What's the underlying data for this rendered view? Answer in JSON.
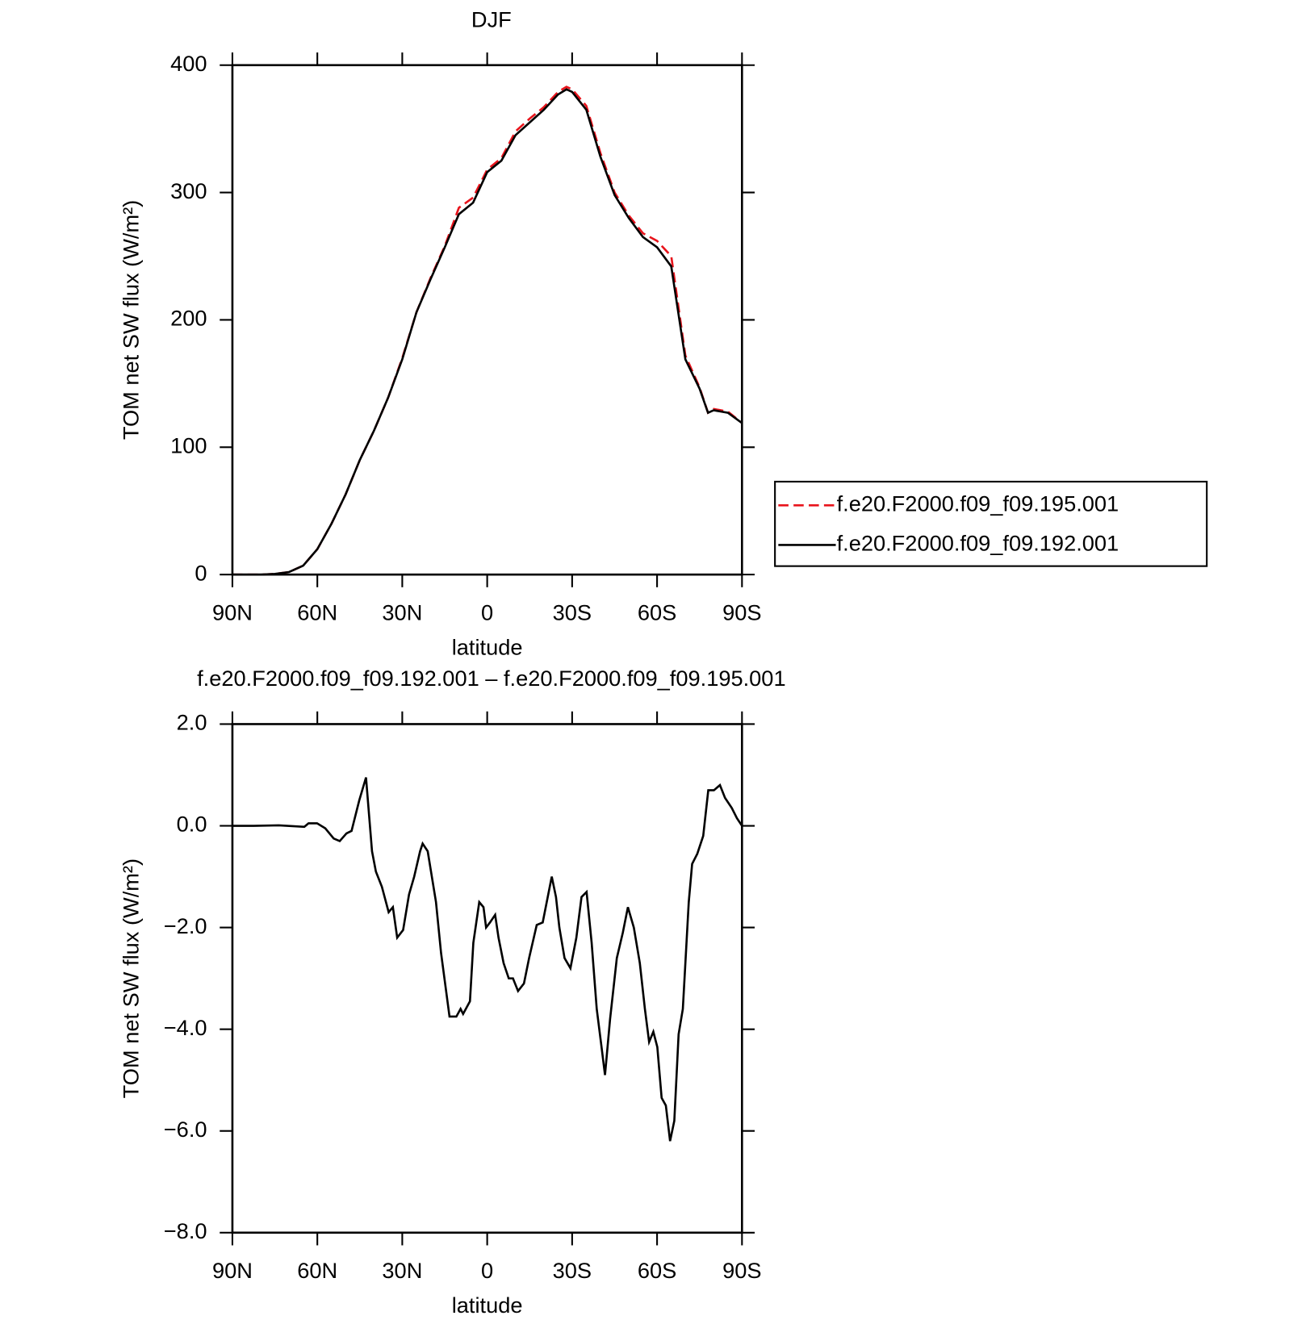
{
  "chart_data": [
    {
      "type": "line",
      "title": "DJF",
      "xlabel": "latitude",
      "ylabel": "TOM net SW flux (W/m²)",
      "x": [
        90,
        85,
        80,
        75,
        70,
        65,
        60,
        55,
        50,
        45,
        40,
        35,
        30,
        25,
        20,
        15,
        10,
        5,
        0,
        -5,
        -10,
        -15,
        -20,
        -25,
        -28,
        -30,
        -35,
        -40,
        -45,
        -50,
        -55,
        -60,
        -65,
        -70,
        -75,
        -78,
        -80,
        -85,
        -90
      ],
      "series": [
        {
          "name": "f.e20.F2000.f09_f09.195.001",
          "color": "#e8141c",
          "linestyle": "dashed",
          "values": [
            0,
            0,
            0,
            0.5,
            2,
            7,
            20,
            40,
            63,
            90,
            113,
            139,
            170,
            206,
            233,
            258,
            288,
            296,
            318,
            327,
            348,
            358,
            367,
            379,
            383,
            381,
            368,
            331,
            300,
            282,
            268,
            262,
            250,
            172,
            147,
            127,
            130,
            128,
            119
          ]
        },
        {
          "name": "f.e20.F2000.f09_f09.192.001",
          "color": "#000000",
          "linestyle": "solid",
          "values": [
            0,
            0,
            0,
            0.5,
            2,
            7,
            20,
            40,
            63,
            90,
            113,
            139,
            169,
            206,
            232,
            257,
            283,
            292,
            316,
            325,
            345,
            355,
            365,
            377,
            381,
            379,
            365,
            328,
            298,
            280,
            265,
            257,
            242,
            169,
            146,
            127,
            129,
            127,
            119
          ]
        }
      ],
      "xlim": [
        90,
        -90
      ],
      "xticks": [
        {
          "value": 90,
          "label": "90N"
        },
        {
          "value": 60,
          "label": "60N"
        },
        {
          "value": 30,
          "label": "30N"
        },
        0,
        {
          "value": -30,
          "label": "30S"
        },
        {
          "value": -60,
          "label": "60S"
        },
        {
          "value": -90,
          "label": "90S"
        }
      ],
      "ylim": [
        0,
        400
      ],
      "yticks": [
        0,
        100,
        200,
        300,
        400
      ],
      "legend": "right"
    },
    {
      "type": "line",
      "title": "f.e20.F2000.f09_f09.192.001 – f.e20.F2000.f09_f09.195.001",
      "xlabel": "latitude",
      "ylabel": "TOM net SW flux (W/m²)",
      "x": [
        90,
        82.5,
        73.6,
        64.6,
        63.1,
        60.1,
        57.2,
        54.2,
        52.1,
        49.7,
        47.9,
        45.2,
        42.8,
        40.7,
        39.3,
        37.2,
        34.8,
        33.3,
        31.8,
        29.7,
        27.6,
        25.8,
        23.7,
        22.8,
        21.0,
        18.1,
        16.3,
        13.3,
        10.9,
        9.4,
        8.5,
        6.1,
        4.9,
        2.8,
        1.3,
        0.4,
        -1.0,
        -2.8,
        -4.0,
        -5.8,
        -7.6,
        -9.1,
        -10.9,
        -13.0,
        -14.8,
        -17.5,
        -19.6,
        -21.9,
        -22.8,
        -24.3,
        -25.5,
        -27.3,
        -29.4,
        -31.5,
        -33.3,
        -35.1,
        -36.9,
        -38.7,
        -40.4,
        -41.6,
        -43.4,
        -45.8,
        -47.9,
        -49.7,
        -51.8,
        -53.9,
        -55.7,
        -57.2,
        -58.7,
        -60.1,
        -61.6,
        -63.1,
        -64.6,
        -66.1,
        -67.6,
        -69.1,
        -71.2,
        -72.4,
        -74.2,
        -76.3,
        -78.1,
        -80.1,
        -82.2,
        -84.0,
        -86.4,
        -88.2,
        -90
      ],
      "series": [
        {
          "color": "#000000",
          "linestyle": "solid",
          "values": [
            0,
            0,
            0.01,
            -0.02,
            0.05,
            0.05,
            -0.05,
            -0.25,
            -0.3,
            -0.15,
            -0.1,
            0.5,
            0.95,
            -0.5,
            -0.9,
            -1.2,
            -1.7,
            -1.6,
            -2.2,
            -2.05,
            -1.35,
            -1.0,
            -0.5,
            -0.35,
            -0.5,
            -1.5,
            -2.5,
            -3.75,
            -3.75,
            -3.6,
            -3.7,
            -3.45,
            -2.3,
            -1.5,
            -1.6,
            -2.0,
            -1.9,
            -1.75,
            -2.2,
            -2.7,
            -3.0,
            -3.0,
            -3.25,
            -3.1,
            -2.6,
            -1.95,
            -1.9,
            -1.25,
            -1.0,
            -1.4,
            -2.0,
            -2.6,
            -2.8,
            -2.2,
            -1.4,
            -1.3,
            -2.3,
            -3.6,
            -4.35,
            -4.9,
            -3.8,
            -2.6,
            -2.1,
            -1.6,
            -2.0,
            -2.7,
            -3.6,
            -4.25,
            -4.05,
            -4.35,
            -5.35,
            -5.5,
            -6.2,
            -5.8,
            -4.1,
            -3.6,
            -1.5,
            -0.75,
            -0.55,
            -0.2,
            0.7,
            0.7,
            0.8,
            0.55,
            0.35,
            0.15,
            0.0
          ]
        }
      ],
      "xlim": [
        90,
        -90
      ],
      "xticks": [
        {
          "value": 90,
          "label": "90N"
        },
        {
          "value": 60,
          "label": "60N"
        },
        {
          "value": 30,
          "label": "30N"
        },
        0,
        {
          "value": -30,
          "label": "30S"
        },
        {
          "value": -60,
          "label": "60S"
        },
        {
          "value": -90,
          "label": "90S"
        }
      ],
      "ylim": [
        -8,
        2
      ],
      "yticks": [
        {
          "value": 2,
          "label": "2.0"
        },
        {
          "value": 0,
          "label": "0.0"
        },
        {
          "value": -2,
          "label": "−2.0"
        },
        {
          "value": -4,
          "label": "−4.0"
        },
        {
          "value": -6,
          "label": "−6.0"
        },
        {
          "value": -8,
          "label": "−8.0"
        }
      ]
    }
  ]
}
